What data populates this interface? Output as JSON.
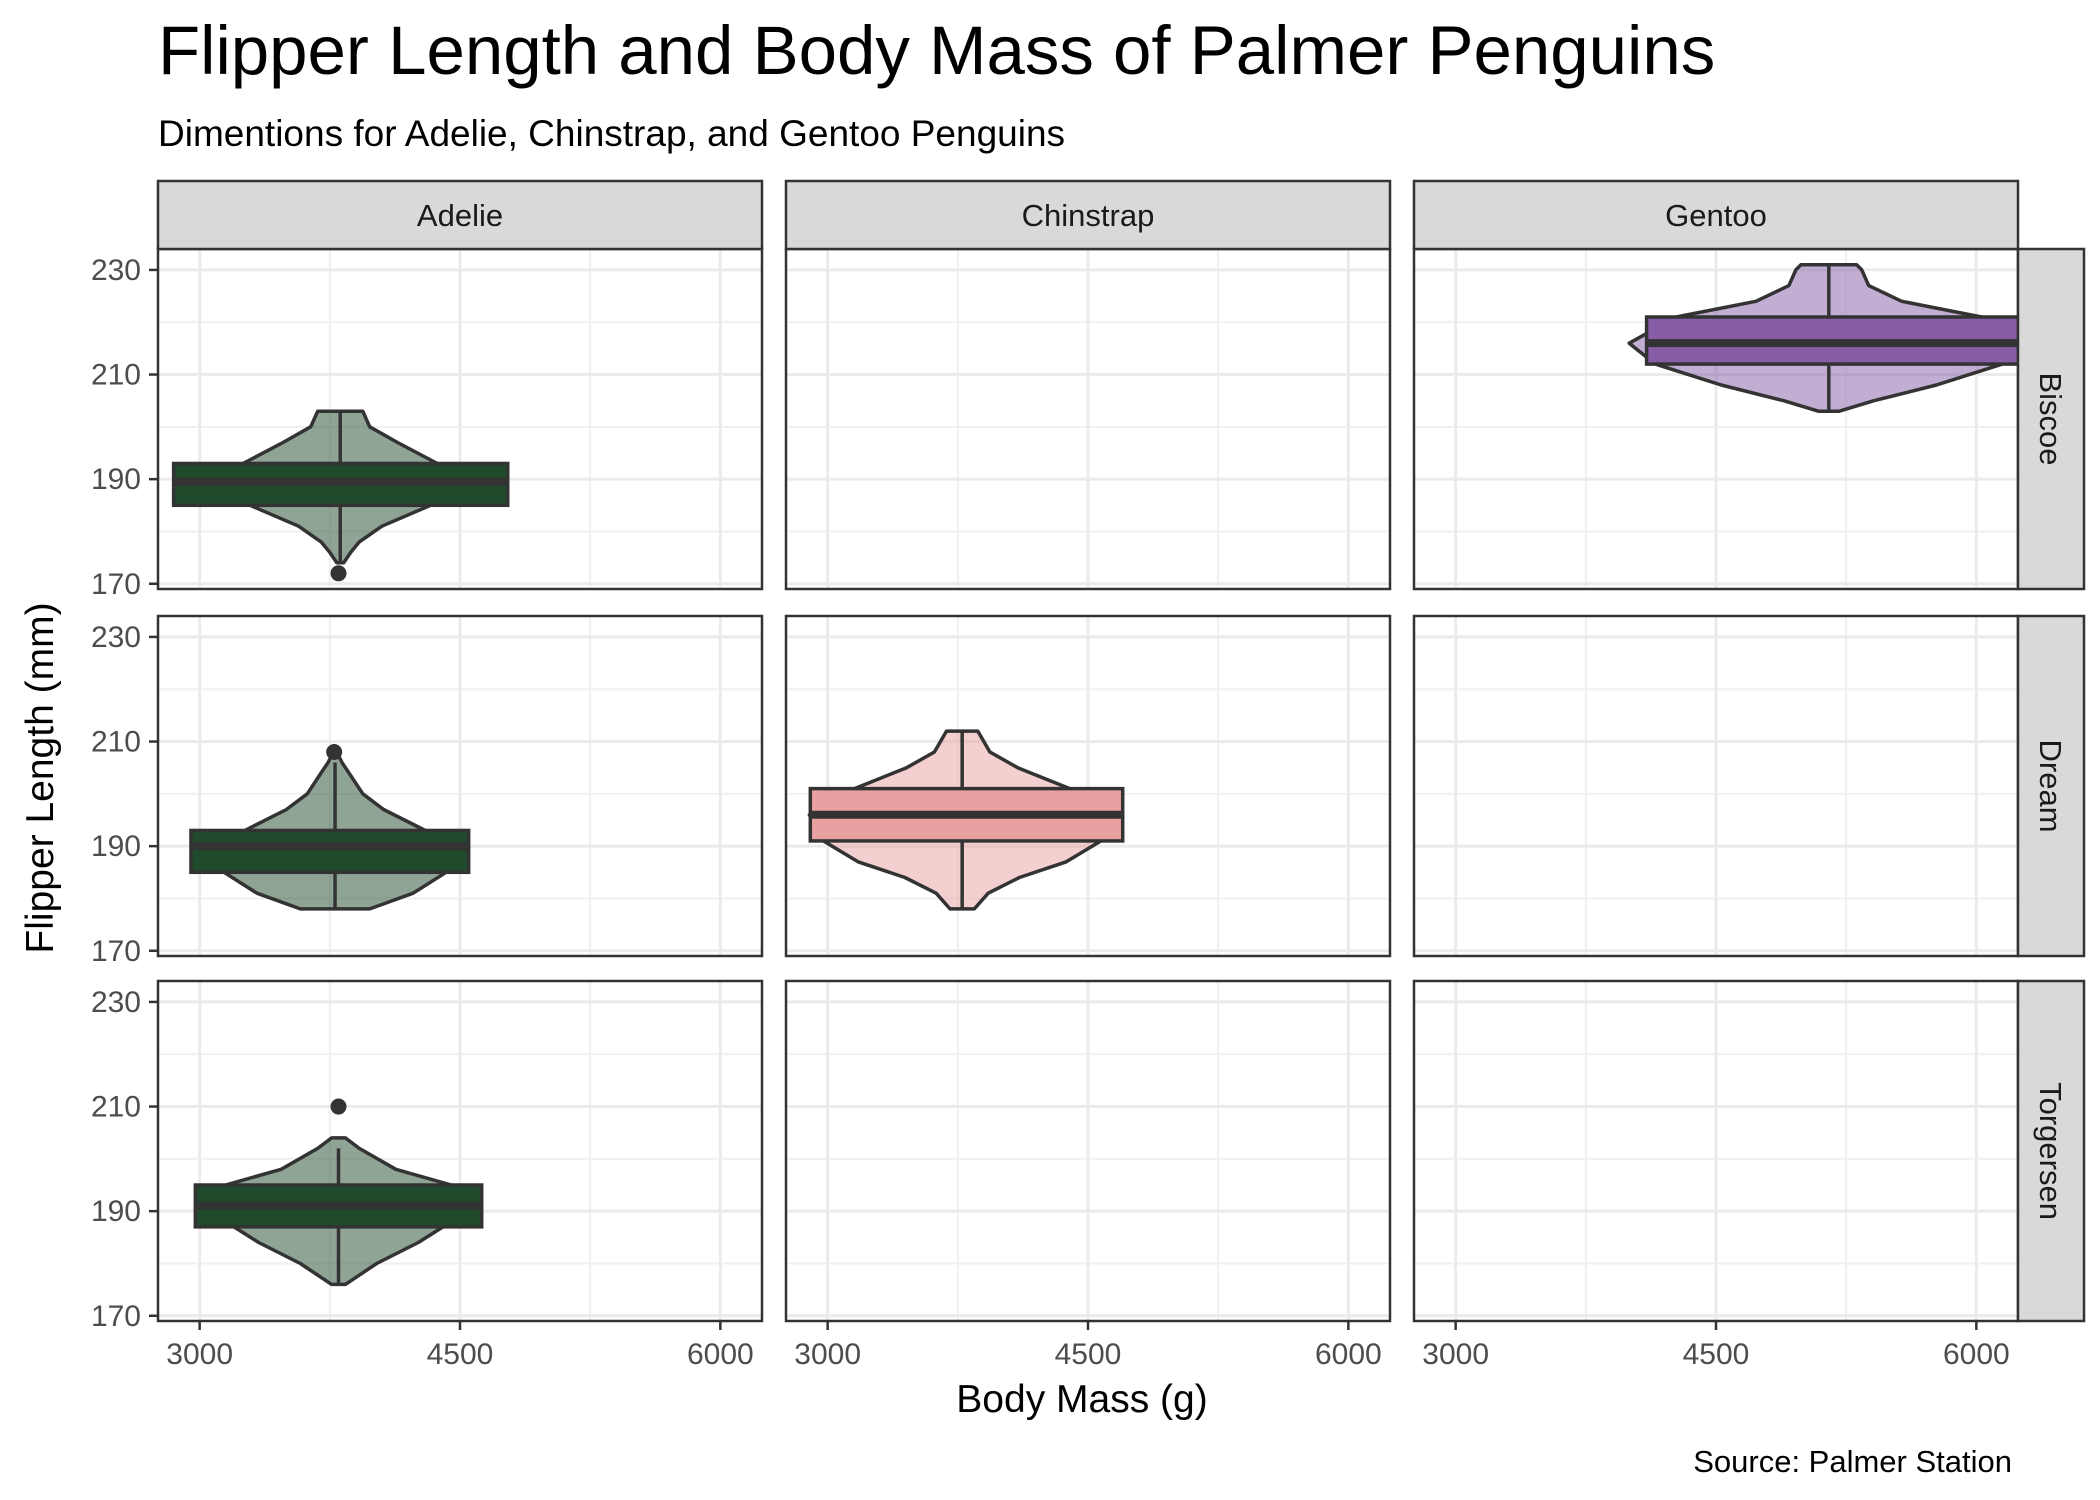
{
  "chart_data": {
    "type": "violin+box (faceted)",
    "title": "Flipper Length and Body Mass of Palmer Penguins",
    "subtitle": "Dimentions for Adelie, Chinstrap, and Gentoo Penguins",
    "xlabel": "Body Mass (g)",
    "ylabel": "Flipper Length (mm)",
    "caption": "Source: Palmer Station",
    "xlim": [
      2760,
      6240
    ],
    "ylim": [
      169,
      234
    ],
    "x_ticks": [
      3000,
      4500,
      6000
    ],
    "y_ticks": [
      170,
      190,
      210,
      230
    ],
    "column_facets": [
      "Adelie",
      "Chinstrap",
      "Gentoo"
    ],
    "row_facets": [
      "Biscoe",
      "Dream",
      "Torgersen"
    ],
    "grid": true,
    "colors": {
      "Adelie": "#1f4a2b",
      "Chinstrap": "#e8a0a0",
      "Gentoo": "#875da8"
    },
    "panels": [
      {
        "species": "Adelie",
        "island": "Biscoe",
        "box": {
          "xmin": 2850,
          "xmax": 4775,
          "q1": 185,
          "median": 189.5,
          "q3": 193,
          "whisker_low": 174,
          "whisker_high": 203
        },
        "violin": {
          "x_center": 3810,
          "max_half_width": 930,
          "profile": [
            [
              174,
              20
            ],
            [
              176,
              60
            ],
            [
              178,
              110
            ],
            [
              181,
              240
            ],
            [
              185,
              520
            ],
            [
              189,
              900
            ],
            [
              193,
              560
            ],
            [
              197,
              330
            ],
            [
              200,
              170
            ],
            [
              203,
              130
            ]
          ]
        },
        "outliers": [
          {
            "x": 3800,
            "y": 172
          }
        ]
      },
      {
        "species": "Adelie",
        "island": "Dream",
        "box": {
          "xmin": 2950,
          "xmax": 4550,
          "q1": 185,
          "median": 190,
          "q3": 193,
          "whisker_low": 178,
          "whisker_high": 206
        },
        "violin": {
          "x_center": 3780,
          "max_half_width": 780,
          "profile": [
            [
              178,
              200
            ],
            [
              181,
              450
            ],
            [
              185,
              640
            ],
            [
              190,
              700
            ],
            [
              193,
              520
            ],
            [
              197,
              280
            ],
            [
              200,
              160
            ],
            [
              204,
              80
            ],
            [
              206,
              40
            ],
            [
              208,
              10
            ]
          ]
        },
        "outliers": [
          {
            "x": 3775,
            "y": 208
          }
        ]
      },
      {
        "species": "Adelie",
        "island": "Torgersen",
        "box": {
          "xmin": 2975,
          "xmax": 4625,
          "q1": 187,
          "median": 191,
          "q3": 195,
          "whisker_low": 176,
          "whisker_high": 202
        },
        "violin": {
          "x_center": 3800,
          "max_half_width": 820,
          "profile": [
            [
              176,
              40
            ],
            [
              180,
              220
            ],
            [
              184,
              460
            ],
            [
              188,
              650
            ],
            [
              191,
              770
            ],
            [
              195,
              650
            ],
            [
              198,
              330
            ],
            [
              202,
              120
            ],
            [
              204,
              40
            ]
          ]
        },
        "outliers": [
          {
            "x": 3800,
            "y": 210
          }
        ]
      },
      {
        "species": "Chinstrap",
        "island": "Dream",
        "box": {
          "xmin": 2900,
          "xmax": 4700,
          "q1": 191,
          "median": 196,
          "q3": 201,
          "whisker_low": 178,
          "whisker_high": 212
        },
        "violin": {
          "x_center": 3775,
          "max_half_width": 900,
          "profile": [
            [
              178,
              70
            ],
            [
              181,
              150
            ],
            [
              184,
              330
            ],
            [
              187,
              600
            ],
            [
              191,
              800
            ],
            [
              196,
              880
            ],
            [
              201,
              620
            ],
            [
              205,
              320
            ],
            [
              208,
              160
            ],
            [
              212,
              90
            ]
          ]
        },
        "outliers": []
      },
      {
        "species": "Gentoo",
        "island": "Biscoe",
        "box": {
          "xmin": 4100,
          "xmax": 6300,
          "q1": 212,
          "median": 216,
          "q3": 221,
          "whisker_low": 203,
          "whisker_high": 231
        },
        "violin": {
          "x_center": 5150,
          "max_half_width": 1150,
          "profile": [
            [
              203,
              60
            ],
            [
              205,
              260
            ],
            [
              208,
              620
            ],
            [
              212,
              1000
            ],
            [
              216,
              1150
            ],
            [
              221,
              880
            ],
            [
              224,
              420
            ],
            [
              227,
              230
            ],
            [
              230,
              190
            ],
            [
              231,
              160
            ]
          ]
        },
        "outliers": []
      }
    ]
  }
}
